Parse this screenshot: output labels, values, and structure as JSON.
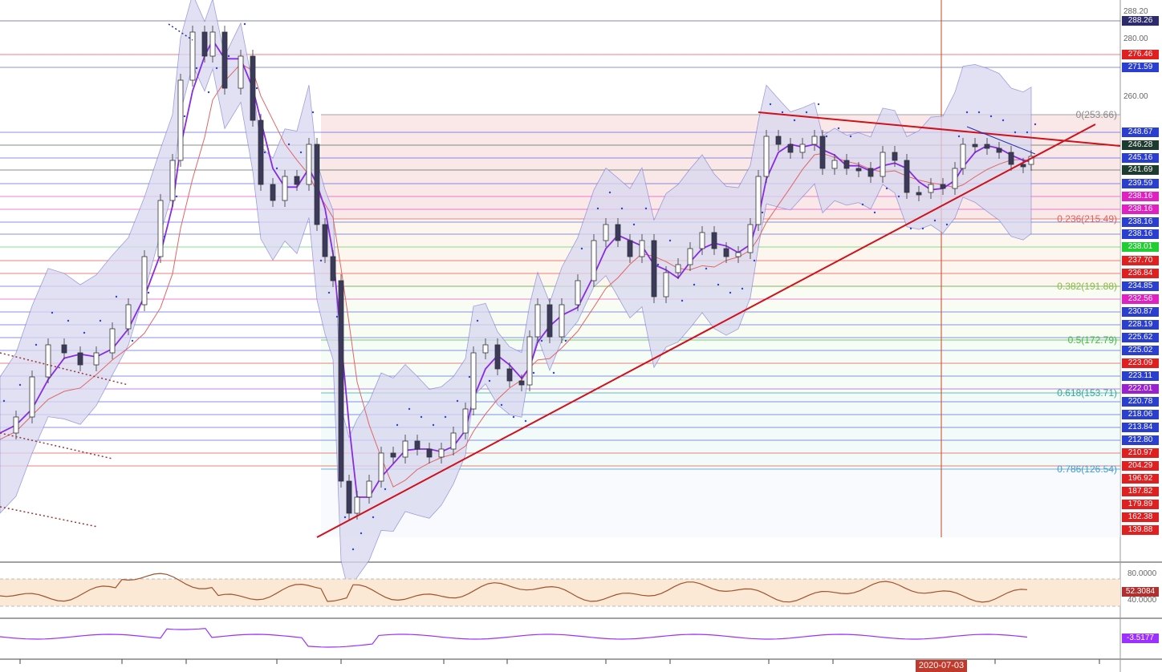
{
  "colors": {
    "candle_up": "#ffffff",
    "candle_down": "#3b3a5c",
    "bollinger_fill": "#d8d8f0",
    "bollinger_edge": "#7f7fd4",
    "fast_ma": "#8a2be2",
    "slow_ma": "#e06666",
    "trendline": "#d0101a",
    "sar": "#3344cc",
    "rsi_line": "#a0522d",
    "rsi_band": "#fbe9d6",
    "osc_line": "#9b30ff"
  },
  "price_scale": {
    "top_label": "288.20",
    "labels": [
      {
        "text": "280.00"
      },
      {
        "text": "270.00"
      },
      {
        "text": "260.00"
      }
    ]
  },
  "price_tags": [
    {
      "text": "288.26",
      "bg": "#2d2b6b"
    },
    {
      "text": "276.46",
      "bg": "#e02020"
    },
    {
      "text": "271.59",
      "bg": "#2a3fd0"
    },
    {
      "text": "248.67",
      "bg": "#2a3fd0"
    },
    {
      "text": "246.28",
      "bg": "#1d3b2f"
    },
    {
      "text": "245.16",
      "bg": "#2a3fd0"
    },
    {
      "text": "241.69",
      "bg": "#1d3b2f"
    },
    {
      "text": "239.59",
      "bg": "#2a3fd0"
    },
    {
      "text": "238.16",
      "bg": "#e020c0"
    },
    {
      "text": "238.16",
      "bg": "#e020c0"
    },
    {
      "text": "238.16",
      "bg": "#2a3fd0"
    },
    {
      "text": "238.16",
      "bg": "#2a3fd0"
    },
    {
      "text": "238.01",
      "bg": "#22cc33"
    },
    {
      "text": "237.70",
      "bg": "#e02020"
    },
    {
      "text": "236.84",
      "bg": "#e02020"
    },
    {
      "text": "234.85",
      "bg": "#2a3fd0"
    },
    {
      "text": "232.56",
      "bg": "#e020c0"
    },
    {
      "text": "230.87",
      "bg": "#2a3fd0"
    },
    {
      "text": "228.19",
      "bg": "#2a3fd0"
    },
    {
      "text": "225.62",
      "bg": "#2a3fd0"
    },
    {
      "text": "225.02",
      "bg": "#2a3fd0"
    },
    {
      "text": "223.09",
      "bg": "#e02020"
    },
    {
      "text": "223.11",
      "bg": "#2a3fd0"
    },
    {
      "text": "222.01",
      "bg": "#9b20d0"
    },
    {
      "text": "220.78",
      "bg": "#2a3fd0"
    },
    {
      "text": "218.06",
      "bg": "#2a3fd0"
    },
    {
      "text": "213.84",
      "bg": "#2a3fd0"
    },
    {
      "text": "212.80",
      "bg": "#2a3fd0"
    },
    {
      "text": "210.97",
      "bg": "#e02020"
    },
    {
      "text": "204.29",
      "bg": "#e02020"
    },
    {
      "text": "196.92",
      "bg": "#e02020"
    },
    {
      "text": "187.82",
      "bg": "#e02020"
    },
    {
      "text": "179.89",
      "bg": "#e02020"
    },
    {
      "text": "162.38",
      "bg": "#e02020"
    },
    {
      "text": "139.88",
      "bg": "#e02020"
    }
  ],
  "fib_labels": [
    {
      "text": "0(253.66)",
      "color": "#888888"
    },
    {
      "text": "0.236(215.49)",
      "color": "#e06060"
    },
    {
      "text": "0.382(191.88)",
      "color": "#88bb44"
    },
    {
      "text": "0.5(172.79)",
      "color": "#44bb44"
    },
    {
      "text": "0.618(153.71)",
      "color": "#33aa99"
    },
    {
      "text": "0.786(126.54)",
      "color": "#4499cc"
    }
  ],
  "rsi_panel": {
    "levels": [
      {
        "text": "80.0000"
      },
      {
        "text": "40.0000"
      }
    ],
    "value": "52.3084"
  },
  "osc_panel": {
    "value": "-3.5177"
  },
  "x_axis": {
    "highlight_date": "2020-07-03"
  },
  "chart_data": {
    "type": "candlestick",
    "title": "",
    "price_axis_labels": [
      288.2,
      280.0,
      270.0,
      260.0
    ],
    "fibonacci": [
      {
        "level": 0,
        "price": 253.66
      },
      {
        "level": 0.236,
        "price": 215.49
      },
      {
        "level": 0.382,
        "price": 191.88
      },
      {
        "level": 0.5,
        "price": 172.79
      },
      {
        "level": 0.618,
        "price": 153.71
      },
      {
        "level": 0.786,
        "price": 126.54
      }
    ],
    "horizontal_levels": [
      288.26,
      276.46,
      271.59,
      248.67,
      246.28,
      245.16,
      241.69,
      239.59,
      238.16,
      238.16,
      238.16,
      238.16,
      238.01,
      237.7,
      236.84,
      234.85,
      232.56,
      230.87,
      228.19,
      225.62,
      225.02,
      223.09,
      223.11,
      222.01,
      220.78,
      218.06,
      213.84,
      212.8,
      210.97,
      204.29,
      196.92,
      187.82,
      179.89,
      162.38,
      139.88
    ],
    "indicators": [
      "bollinger_bands",
      "moving_average_fast",
      "moving_average_slow",
      "parabolic_sar",
      "rsi",
      "oscillator"
    ],
    "rsi_levels": [
      80,
      40
    ],
    "rsi_last": 52.3084,
    "oscillator_last": -3.5177,
    "grid": false
  }
}
